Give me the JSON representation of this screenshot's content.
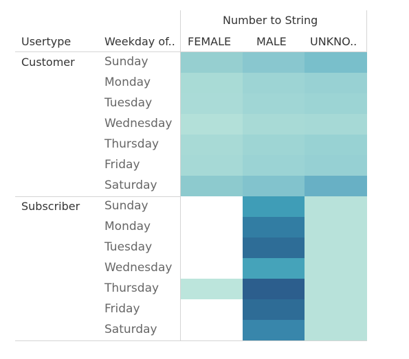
{
  "chart_data": {
    "type": "heatmap",
    "column_header_title": "Number to String",
    "row_dim_headers": [
      "Usertype",
      "Weekday of.."
    ],
    "columns": [
      "FEMALE",
      "MALE",
      "UNKNO.."
    ],
    "groups": [
      {
        "name": "Customer",
        "days": [
          "Sunday",
          "Monday",
          "Tuesday",
          "Wednesday",
          "Thursday",
          "Friday",
          "Saturday"
        ],
        "colors": [
          [
            "#96cfd0",
            "#89c7cf",
            "#79bfcb"
          ],
          [
            "#a9dbd6",
            "#9dd4d4",
            "#98d1d3"
          ],
          [
            "#aadbd7",
            "#a0d6d5",
            "#9cd4d4"
          ],
          [
            "#b3e0d9",
            "#a8dad6",
            "#a6d9d6"
          ],
          [
            "#a8dad6",
            "#9ed5d4",
            "#98d2d3"
          ],
          [
            "#a6d9d6",
            "#9bd3d4",
            "#96d0d3"
          ],
          [
            "#8dcace",
            "#82c3cd",
            "#68b0c5"
          ]
        ]
      },
      {
        "name": "Subscriber",
        "days": [
          "Sunday",
          "Monday",
          "Tuesday",
          "Wednesday",
          "Thursday",
          "Friday",
          "Saturday"
        ],
        "colors": [
          [
            "#ffffff",
            "#3f9db7",
            "#b8e2da"
          ],
          [
            "#ffffff",
            "#327da3",
            "#b8e2da"
          ],
          [
            "#ffffff",
            "#2e6d97",
            "#b8e2da"
          ],
          [
            "#ffffff",
            "#45a3ba",
            "#b8e2da"
          ],
          [
            "#bce5dc",
            "#2c5e8d",
            "#b8e2da"
          ],
          [
            "#ffffff",
            "#2e6c96",
            "#b8e2da"
          ],
          [
            "#ffffff",
            "#3886ab",
            "#b8e2da"
          ]
        ]
      }
    ]
  }
}
